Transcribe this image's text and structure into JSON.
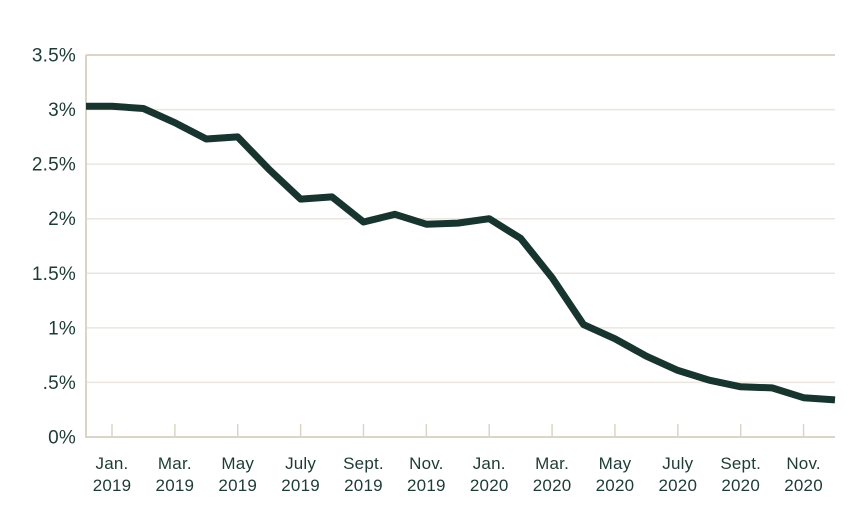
{
  "chart_data": {
    "type": "line",
    "title": "",
    "x": [
      "Jan. 2019",
      "Feb. 2019",
      "Mar. 2019",
      "Apr. 2019",
      "May 2019",
      "June 2019",
      "July 2019",
      "Aug. 2019",
      "Sept. 2019",
      "Oct. 2019",
      "Nov. 2019",
      "Dec. 2019",
      "Jan. 2020",
      "Feb. 2020",
      "Mar. 2020",
      "Apr. 2020",
      "May 2020",
      "June 2020",
      "July 2020",
      "Aug. 2020",
      "Sept. 2020",
      "Oct. 2020",
      "Nov. 2020",
      "Dec. 2020"
    ],
    "values": [
      3.03,
      3.01,
      2.88,
      2.73,
      2.75,
      2.45,
      2.18,
      2.2,
      1.97,
      2.04,
      1.95,
      1.96,
      2.0,
      1.82,
      1.46,
      1.03,
      0.9,
      0.74,
      0.61,
      0.52,
      0.46,
      0.45,
      0.36,
      0.34
    ],
    "ylim": [
      0,
      3.5
    ],
    "y_tick_values": [
      0,
      0.5,
      1,
      1.5,
      2,
      2.5,
      3,
      3.5
    ],
    "y_tick_labels": [
      "0%",
      ".5%",
      "1%",
      "1.5%",
      "2%",
      "2.5%",
      "3%",
      "3.5%"
    ],
    "x_tick_every": 2,
    "x_tick_labels": [
      {
        "month": "Jan.",
        "year": "2019"
      },
      {
        "month": "Mar.",
        "year": "2019"
      },
      {
        "month": "May",
        "year": "2019"
      },
      {
        "month": "July",
        "year": "2019"
      },
      {
        "month": "Sept.",
        "year": "2019"
      },
      {
        "month": "Nov.",
        "year": "2019"
      },
      {
        "month": "Jan.",
        "year": "2020"
      },
      {
        "month": "Mar.",
        "year": "2020"
      },
      {
        "month": "May",
        "year": "2020"
      },
      {
        "month": "July",
        "year": "2020"
      },
      {
        "month": "Sept.",
        "year": "2020"
      },
      {
        "month": "Nov.",
        "year": "2020"
      }
    ],
    "grid": "horizontal",
    "legend_position": "none",
    "line_starts_at_y_axis": true,
    "colors": {
      "line": "#17342e",
      "label_text": "#1e3b35",
      "gridline": "#eae6df",
      "axis": "#dcd5c7",
      "background": "#ffffff"
    },
    "line_width": 7
  }
}
